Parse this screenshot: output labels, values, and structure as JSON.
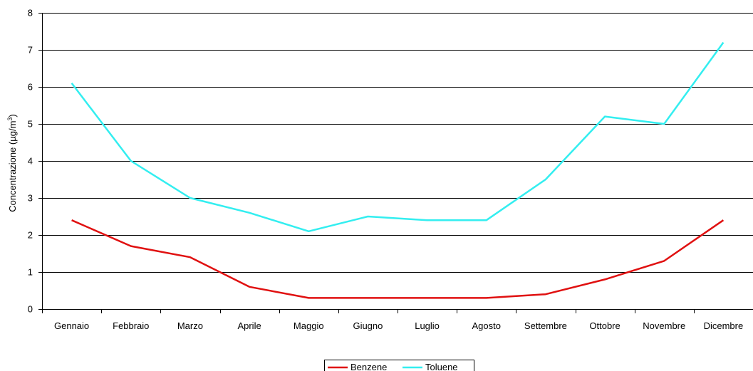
{
  "chart_data": {
    "type": "line",
    "categories": [
      "Gennaio",
      "Febbraio",
      "Marzo",
      "Aprile",
      "Maggio",
      "Giugno",
      "Luglio",
      "Agosto",
      "Settembre",
      "Ottobre",
      "Novembre",
      "Dicembre"
    ],
    "series": [
      {
        "name": "Benzene",
        "color": "#e01010",
        "values": [
          2.4,
          1.7,
          1.4,
          0.6,
          0.3,
          0.3,
          0.3,
          0.3,
          0.4,
          0.8,
          1.3,
          2.4
        ]
      },
      {
        "name": "Toluene",
        "color": "#33eef0",
        "values": [
          6.1,
          4.0,
          3.0,
          2.6,
          2.1,
          2.5,
          2.4,
          2.4,
          3.5,
          5.2,
          5.0,
          7.2
        ]
      }
    ],
    "ylabel": "Concentrazione (µg/m",
    "ylabel_superscript": "3",
    "ylabel_suffix": ")",
    "ylim": [
      0,
      8
    ],
    "yticks": [
      "0",
      "1",
      "2",
      "3",
      "4",
      "5",
      "6",
      "7",
      "8"
    ],
    "grid": "horizontal",
    "legend_position": "bottom-center"
  }
}
